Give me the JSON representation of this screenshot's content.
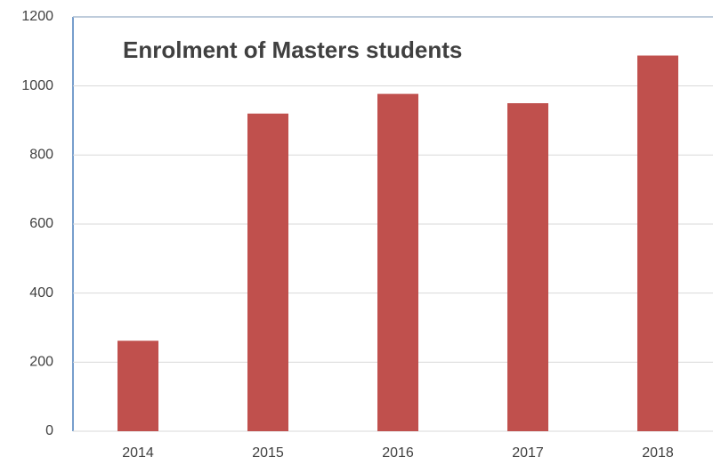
{
  "chart_data": {
    "type": "bar",
    "title": "Enrolment of Masters students",
    "categories": [
      "2014",
      "2015",
      "2016",
      "2017",
      "2018"
    ],
    "values": [
      262,
      920,
      977,
      950,
      1088
    ],
    "color": "#c0504d",
    "ylim": [
      0,
      1200
    ],
    "yticks": [
      0,
      200,
      400,
      600,
      800,
      1000,
      1200
    ],
    "grid": true
  }
}
